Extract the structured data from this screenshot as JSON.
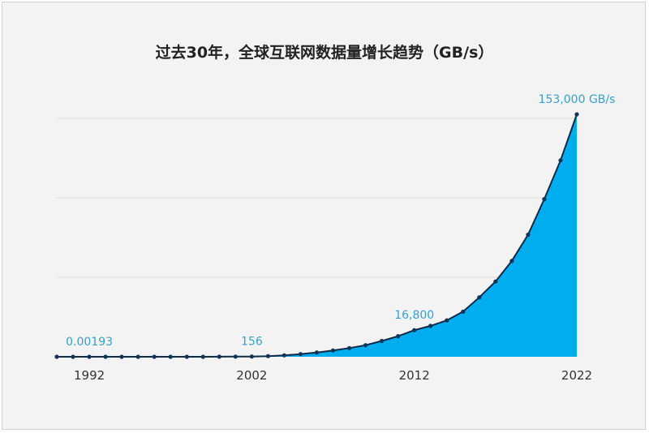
{
  "colors": {
    "background": "#f3f3f3",
    "area_fill": "#00adef",
    "line": "#0d2a4a",
    "marker": "#10345a",
    "data_label": "#3aa0c8",
    "grid": "#dcdcdc"
  },
  "chart_data": {
    "type": "area",
    "title": "过去30年，全球互联网数据量增长趋势（GB/s）",
    "xlabel": "",
    "ylabel": "",
    "x_ticks": [
      "1992",
      "2002",
      "2012",
      "2022"
    ],
    "xlim": [
      1990,
      2022
    ],
    "ylim": [
      0,
      153000
    ],
    "grid": "horizontal",
    "legend": "none",
    "markers": true,
    "x": [
      1990,
      1991,
      1992,
      1993,
      1994,
      1995,
      1996,
      1997,
      1998,
      1999,
      2000,
      2001,
      2002,
      2003,
      2004,
      2005,
      2006,
      2007,
      2008,
      2009,
      2010,
      2011,
      2012,
      2013,
      2014,
      2015,
      2016,
      2017,
      2018,
      2019,
      2020,
      2021,
      2022
    ],
    "values": [
      0.00193,
      0.00193,
      0.00193,
      0.01,
      0.05,
      0.2,
      0.8,
      2,
      5,
      15,
      40,
      90,
      156,
      400,
      900,
      1700,
      2700,
      4000,
      5500,
      7300,
      10000,
      13000,
      16800,
      19500,
      23000,
      28500,
      37500,
      47500,
      60500,
      77000,
      99500,
      124000,
      153000
    ],
    "annotations": [
      {
        "x": 1992,
        "label": "0.00193"
      },
      {
        "x": 2002,
        "label": "156"
      },
      {
        "x": 2012,
        "label": "16,800"
      },
      {
        "x": 2022,
        "label": "153,000 GB/s"
      }
    ]
  }
}
